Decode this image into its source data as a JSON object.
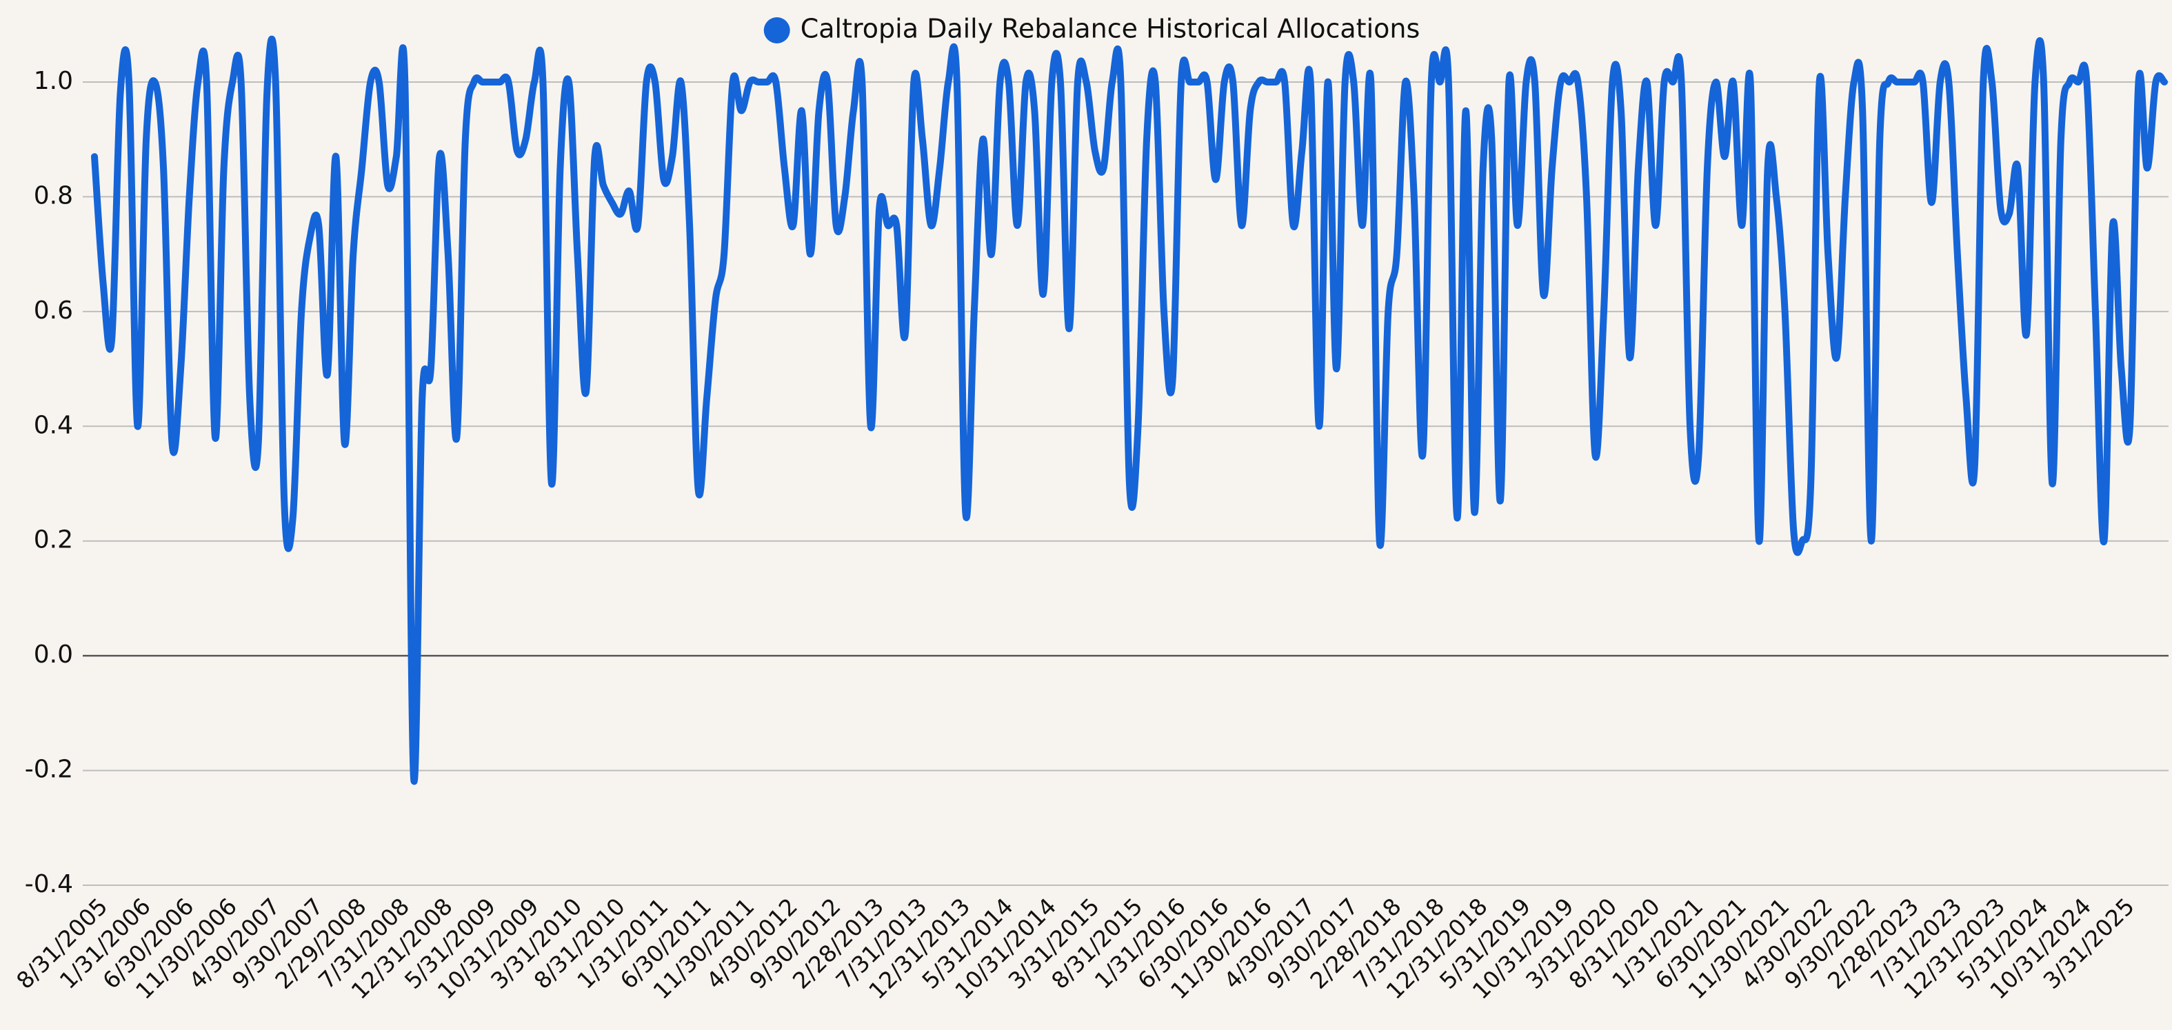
{
  "chart_data": {
    "type": "line",
    "categories": [
      "8/31/2005",
      null,
      null,
      null,
      null,
      "1/31/2006",
      null,
      null,
      null,
      null,
      "6/30/2006",
      null,
      null,
      null,
      null,
      "11/30/2006",
      null,
      null,
      null,
      null,
      "4/30/2007",
      null,
      null,
      null,
      null,
      "9/30/2007",
      null,
      null,
      null,
      null,
      "2/29/2008",
      null,
      null,
      null,
      null,
      "7/31/2008",
      null,
      null,
      null,
      null,
      "12/31/2008",
      null,
      null,
      null,
      null,
      "5/31/2009",
      null,
      null,
      null,
      null,
      "10/31/2009",
      null,
      null,
      null,
      null,
      "3/31/2010",
      null,
      null,
      null,
      null,
      "8/31/2010",
      null,
      null,
      null,
      null,
      "1/31/2011",
      null,
      null,
      null,
      null,
      "6/30/2011",
      null,
      null,
      null,
      null,
      "11/30/2011",
      null,
      null,
      null,
      null,
      "4/30/2012",
      null,
      null,
      null,
      null,
      "9/30/2012",
      null,
      null,
      null,
      null,
      "2/28/2013",
      null,
      null,
      null,
      null,
      "7/31/2013",
      null,
      null,
      null,
      null,
      "12/31/2013",
      null,
      null,
      null,
      null,
      "5/31/2014",
      null,
      null,
      null,
      null,
      "10/31/2014",
      null,
      null,
      null,
      null,
      "3/31/2015",
      null,
      null,
      null,
      null,
      "8/31/2015",
      null,
      null,
      null,
      null,
      "1/31/2016",
      null,
      null,
      null,
      null,
      "6/30/2016",
      null,
      null,
      null,
      null,
      "11/30/2016",
      null,
      null,
      null,
      null,
      "4/30/2017",
      null,
      null,
      null,
      null,
      "9/30/2017",
      null,
      null,
      null,
      null,
      "2/28/2018",
      null,
      null,
      null,
      null,
      "7/31/2018",
      null,
      null,
      null,
      null,
      "12/31/2018",
      null,
      null,
      null,
      null,
      "5/31/2019",
      null,
      null,
      null,
      null,
      "10/31/2019",
      null,
      null,
      null,
      null,
      "3/31/2020",
      null,
      null,
      null,
      null,
      "8/31/2020",
      null,
      null,
      null,
      null,
      "1/31/2021",
      null,
      null,
      null,
      null,
      "6/30/2021",
      null,
      null,
      null,
      null,
      "11/30/2021",
      null,
      null,
      null,
      null,
      "4/30/2022",
      null,
      null,
      null,
      null,
      "9/30/2022",
      null,
      null,
      null,
      null,
      "2/28/2023",
      null,
      null,
      null,
      null,
      "7/31/2023",
      null,
      null,
      null,
      null,
      "12/31/2023",
      null,
      null,
      null,
      null,
      "5/31/2024",
      null,
      null,
      null,
      null,
      "10/31/2024",
      null,
      null,
      null,
      null,
      "3/31/2025",
      null,
      null,
      null,
      null,
      null
    ],
    "series": [
      {
        "name": "Caltropia Daily Rebalance Historical Allocations",
        "color": "#1565d8",
        "values": [
          0.87,
          0.65,
          0.55,
          0.98,
          1,
          0.4,
          0.9,
          1,
          0.85,
          0.37,
          0.5,
          0.8,
          1,
          1,
          0.38,
          0.85,
          1,
          1,
          0.45,
          0.37,
          0.98,
          1,
          0.27,
          0.24,
          0.6,
          0.73,
          0.75,
          0.49,
          0.87,
          0.37,
          0.7,
          0.85,
          1,
          1,
          0.82,
          0.87,
          1,
          -0.21,
          0.45,
          0.5,
          0.87,
          0.7,
          0.38,
          0.9,
          1,
          1,
          1,
          1,
          1,
          0.88,
          0.9,
          1,
          1,
          0.3,
          0.85,
          1,
          0.7,
          0.46,
          0.87,
          0.82,
          0.79,
          0.77,
          0.81,
          0.75,
          1,
          1,
          0.83,
          0.87,
          1,
          0.75,
          0.29,
          0.45,
          0.62,
          0.7,
          1,
          0.95,
          1,
          1,
          1,
          1,
          0.85,
          0.75,
          0.95,
          0.7,
          0.95,
          1,
          0.75,
          0.8,
          0.95,
          1,
          0.4,
          0.78,
          0.75,
          0.75,
          0.56,
          1,
          0.9,
          0.75,
          0.85,
          1,
          1,
          0.25,
          0.6,
          0.9,
          0.7,
          1,
          1,
          0.75,
          1,
          0.95,
          0.63,
          1,
          1,
          0.57,
          1,
          1,
          0.88,
          0.85,
          1,
          1,
          0.3,
          0.4,
          0.9,
          1,
          0.6,
          0.48,
          1,
          1,
          1,
          1,
          0.83,
          1,
          1,
          0.75,
          0.95,
          1,
          1,
          1,
          1,
          0.75,
          0.88,
          1,
          0.4,
          1,
          0.5,
          1,
          1,
          0.75,
          1,
          0.2,
          0.6,
          0.7,
          1,
          0.8,
          0.35,
          1,
          1,
          1,
          0.24,
          0.95,
          0.25,
          0.85,
          0.9,
          0.27,
          1,
          0.75,
          1,
          1,
          0.63,
          0.85,
          1,
          1,
          1,
          0.8,
          0.35,
          0.6,
          1,
          0.95,
          0.52,
          0.85,
          1,
          0.75,
          1,
          1,
          1,
          0.4,
          0.35,
          0.85,
          1,
          0.87,
          1,
          0.75,
          1,
          0.2,
          0.85,
          0.8,
          0.6,
          0.22,
          0.2,
          0.3,
          1,
          0.7,
          0.52,
          0.8,
          1,
          0.95,
          0.2,
          0.9,
          1,
          1,
          1,
          1,
          1,
          0.79,
          1,
          1,
          0.7,
          0.45,
          0.33,
          1,
          1,
          0.78,
          0.77,
          0.85,
          0.56,
          1,
          1,
          0.3,
          0.9,
          1,
          1,
          1,
          0.6,
          0.2,
          0.75,
          0.5,
          0.4,
          1,
          0.85,
          1,
          1
        ]
      }
    ],
    "ylim": [
      -0.4,
      1.0
    ],
    "yticks": [
      -0.4,
      -0.2,
      {
        "value": 0,
        "label": "0.0"
      },
      0.2,
      0.4,
      0.6,
      0.8,
      {
        "value": 1,
        "label": "1.0"
      }
    ],
    "grid": true,
    "legend": "top"
  }
}
